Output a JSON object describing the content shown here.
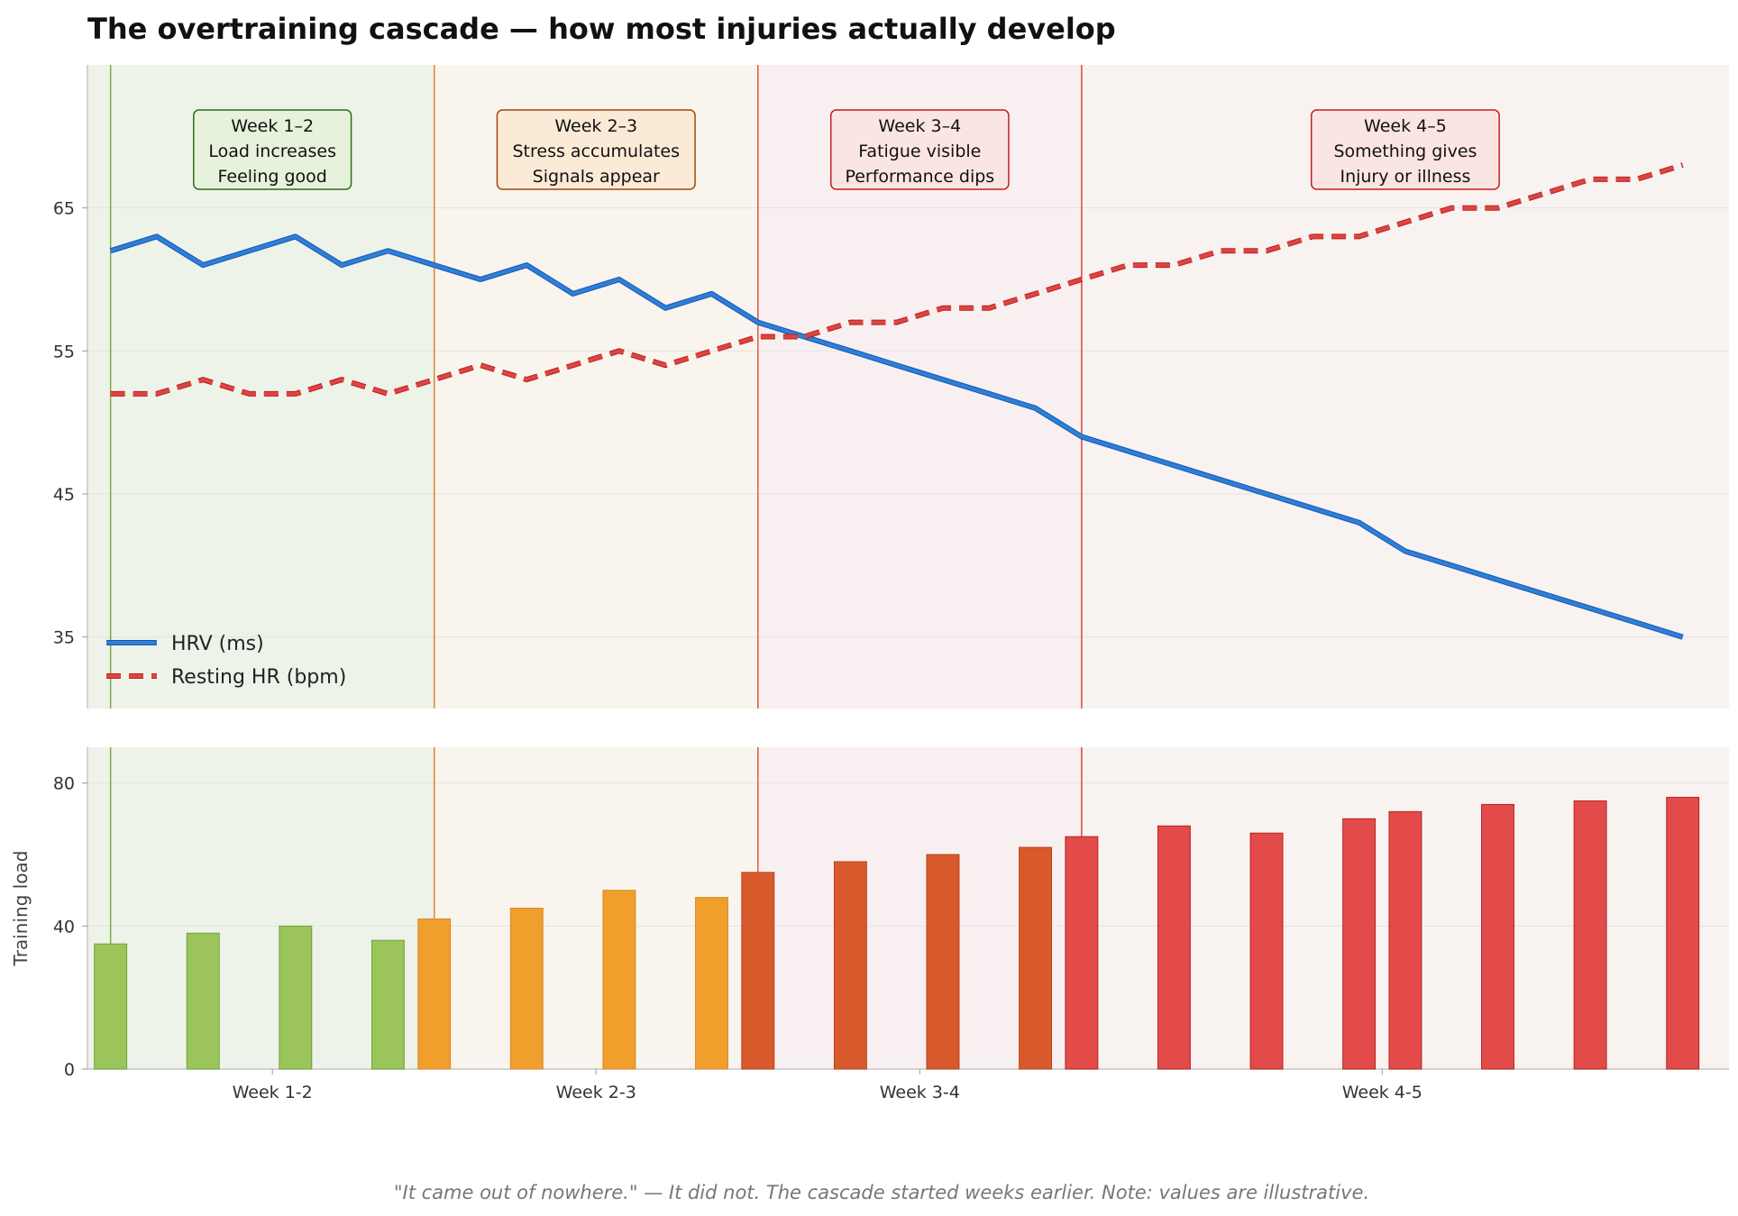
{
  "chart_data": [
    {
      "type": "line",
      "title": "The overtraining cascade — how most injuries actually develop",
      "ylim": [
        30,
        75
      ],
      "yticks": [
        35,
        45,
        55,
        65
      ],
      "xlim": [
        -0.5,
        35.0
      ],
      "grid": "horizontal",
      "legend_position": "lower-left",
      "x": [
        0,
        1,
        2,
        3,
        4,
        5,
        6,
        7,
        8,
        9,
        10,
        11,
        12,
        13,
        14,
        15,
        16,
        17,
        18,
        19,
        20,
        21,
        22,
        23,
        24,
        25,
        26,
        27,
        28,
        29,
        30,
        31,
        32,
        33,
        34
      ],
      "series": [
        {
          "name": "HRV (ms)",
          "color": "#2f7ed8",
          "style": "solid",
          "values": [
            62,
            63,
            61,
            62,
            63,
            61,
            62,
            61,
            60,
            61,
            59,
            60,
            58,
            59,
            57,
            56,
            55,
            54,
            53,
            52,
            51,
            49,
            48,
            47,
            46,
            45,
            44,
            43,
            41,
            40,
            39,
            38,
            37,
            36,
            35
          ]
        },
        {
          "name": "Resting HR (bpm)",
          "color": "#e04343",
          "style": "dashed",
          "values": [
            52,
            52,
            53,
            52,
            52,
            53,
            52,
            53,
            54,
            53,
            54,
            55,
            54,
            55,
            56,
            56,
            57,
            57,
            58,
            58,
            59,
            60,
            61,
            61,
            62,
            62,
            63,
            63,
            64,
            65,
            65,
            66,
            67,
            67,
            68
          ]
        }
      ],
      "phases": [
        {
          "label": "Week 1–2",
          "lines": [
            "Week 1–2",
            "Load increases",
            "Feeling good"
          ],
          "start": 0,
          "end": 7,
          "fill": "#eef3ea",
          "box_fill": "#e6f2dc",
          "edge": "#2e6b1a",
          "line_color": "#7ca84a"
        },
        {
          "label": "Week 2–3",
          "lines": [
            "Week 2–3",
            "Stress accumulates",
            "Signals appear"
          ],
          "start": 7,
          "end": 14,
          "fill": "#f9f4ee",
          "box_fill": "#fbead6",
          "edge": "#a3460a",
          "line_color": "#d98a2b"
        },
        {
          "label": "Week 3–4",
          "lines": [
            "Week 3–4",
            "Fatigue visible",
            "Performance dips"
          ],
          "start": 14,
          "end": 21,
          "fill": "#f8f0f0",
          "box_fill": "#fbe5e3",
          "edge": "#c41e1e",
          "line_color": "#e0593a"
        },
        {
          "label": "Week 4–5",
          "lines": [
            "Week 4–5",
            "Something gives",
            "Injury or illness"
          ],
          "start": 21,
          "end": 35,
          "fill": "#f8f2f1",
          "box_fill": "#fbe5e3",
          "edge": "#c41e1e",
          "line_color": "#e04343"
        }
      ]
    },
    {
      "type": "bar",
      "ylabel": "Training load",
      "ylim": [
        0,
        90
      ],
      "yticks": [
        0,
        40,
        80
      ],
      "xlim": [
        -0.5,
        35.0
      ],
      "grid": "horizontal",
      "x": [
        0,
        2,
        4,
        6,
        7,
        9,
        11,
        13,
        14,
        16,
        18,
        20,
        21,
        23,
        25,
        27,
        28,
        30,
        32,
        34
      ],
      "values": [
        35,
        38,
        40,
        36,
        42,
        45,
        50,
        48,
        55,
        58,
        60,
        62,
        65,
        68,
        66,
        70,
        72,
        74,
        75,
        76
      ],
      "colors": [
        "#9bc55a",
        "#9bc55a",
        "#9bc55a",
        "#9bc55a",
        "#f09e2c",
        "#f09e2c",
        "#f09e2c",
        "#f09e2c",
        "#d85a2c",
        "#d85a2c",
        "#d85a2c",
        "#d85a2c",
        "#e24b4a",
        "#e24b4a",
        "#e24b4a",
        "#e24b4a",
        "#e24b4a",
        "#e24b4a",
        "#e24b4a",
        "#e24b4a"
      ],
      "edge_colors": [
        "#6ea33a",
        "#6ea33a",
        "#6ea33a",
        "#6ea33a",
        "#d98a2b",
        "#d98a2b",
        "#d98a2b",
        "#d98a2b",
        "#b8431c",
        "#b8431c",
        "#b8431c",
        "#b8431c",
        "#b3241f",
        "#b3241f",
        "#b3241f",
        "#b3241f",
        "#b3241f",
        "#b3241f",
        "#b3241f",
        "#b3241f"
      ],
      "xticks": [
        {
          "label": "Week 1-2",
          "x": 3.5
        },
        {
          "label": "Week 2-3",
          "x": 10.5
        },
        {
          "label": "Week 3-4",
          "x": 17.5
        },
        {
          "label": "Week 4-5",
          "x": 27.5
        }
      ]
    }
  ],
  "footer": "\"It came out of nowhere.\" — It did not. The cascade started weeks earlier.     Note: values are illustrative."
}
